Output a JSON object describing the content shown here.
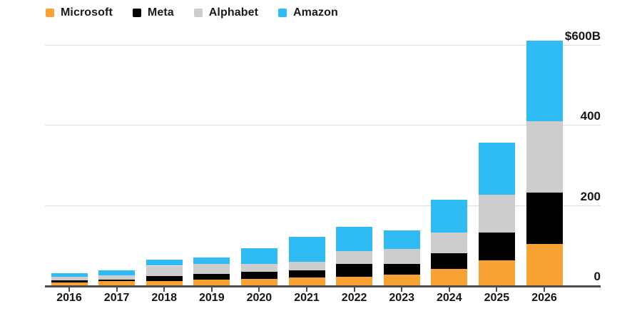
{
  "chart_data": {
    "type": "bar",
    "stacked": true,
    "title": "",
    "xlabel": "",
    "ylabel": "",
    "value_unit": "billions of US dollars",
    "categories": [
      "2016",
      "2017",
      "2018",
      "2019",
      "2020",
      "2021",
      "2022",
      "2023",
      "2024",
      "2025",
      "2026"
    ],
    "series": [
      {
        "name": "Microsoft",
        "color": "#F8A233",
        "values": [
          8,
          10,
          10,
          14,
          16,
          19,
          22,
          26,
          41,
          63,
          104
        ]
      },
      {
        "name": "Meta",
        "color": "#000000",
        "values": [
          5,
          5,
          14,
          14,
          17,
          18,
          31,
          28,
          39,
          68,
          127
        ]
      },
      {
        "name": "Alphabet",
        "color": "#CDCDCD",
        "values": [
          9,
          10,
          25,
          25,
          21,
          21,
          32,
          36,
          52,
          95,
          179
        ]
      },
      {
        "name": "Amazon",
        "color": "#2FBCF5",
        "values": [
          9,
          12,
          15,
          16,
          38,
          63,
          61,
          48,
          82,
          130,
          200
        ]
      }
    ],
    "totals": [
      31,
      37,
      64,
      69,
      92,
      121,
      146,
      138,
      214,
      356,
      610
    ],
    "ylim": [
      0,
      620
    ],
    "y_ticks": [
      {
        "value": 600,
        "label": "$600B"
      },
      {
        "value": 400,
        "label": "400"
      },
      {
        "value": 200,
        "label": "200"
      },
      {
        "value": 0,
        "label": "0"
      }
    ],
    "grid": "horizontal",
    "legend_position": "top-left",
    "axis_labels_side": "right"
  },
  "colors": {
    "background": "#FFFFFF",
    "gridline": "#DDDDDD",
    "axis_line": "#4D4D4D",
    "text": "#1A1A1A"
  }
}
